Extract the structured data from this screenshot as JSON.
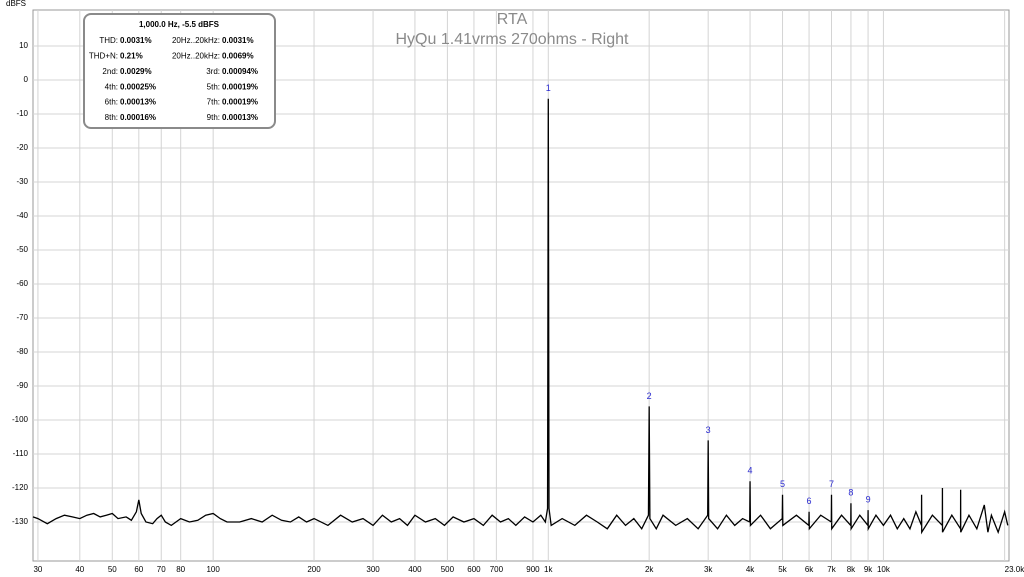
{
  "chart_data": {
    "type": "line",
    "title": "RTA",
    "subtitle": "HyQu 1.41vrms 270ohms - Right",
    "y_label": "dBFS",
    "log_x": true,
    "grid": true,
    "xlim": [
      29,
      23700
    ],
    "ylim": [
      -140,
      20
    ],
    "xticks": [
      30,
      40,
      50,
      60,
      70,
      80,
      100,
      200,
      300,
      400,
      500,
      600,
      700,
      900,
      {
        "value": 1000,
        "label": "1k"
      },
      {
        "value": 2000,
        "label": "2k"
      },
      {
        "value": 3000,
        "label": "3k"
      },
      {
        "value": 4000,
        "label": "4k"
      },
      {
        "value": 5000,
        "label": "5k"
      },
      {
        "value": 6000,
        "label": "6k"
      },
      {
        "value": 7000,
        "label": "7k"
      },
      {
        "value": 8000,
        "label": "8k"
      },
      {
        "value": 9000,
        "label": "9k"
      },
      {
        "value": 10000,
        "label": "10k"
      },
      {
        "value": 23000,
        "label": "23.0k Hz"
      }
    ],
    "yticks": [
      10,
      0,
      -10,
      -20,
      -30,
      -40,
      -50,
      -60,
      -70,
      -80,
      -90,
      -100,
      -110,
      -120,
      -130
    ],
    "x": [
      29,
      30,
      32,
      34,
      36,
      38,
      40,
      42,
      44,
      46,
      48,
      50,
      52,
      55,
      57,
      59,
      60,
      61,
      63,
      66,
      68,
      70,
      72,
      75,
      80,
      85,
      90,
      95,
      100,
      105,
      110,
      120,
      130,
      140,
      150,
      160,
      170,
      180,
      190,
      200,
      220,
      240,
      260,
      280,
      300,
      320,
      340,
      360,
      380,
      400,
      430,
      460,
      490,
      520,
      560,
      600,
      640,
      680,
      720,
      760,
      800,
      850,
      900,
      950,
      980,
      995,
      1000,
      1005,
      1020,
      1100,
      1200,
      1300,
      1400,
      1500,
      1600,
      1700,
      1800,
      1900,
      1990,
      2000,
      2010,
      2100,
      2200,
      2400,
      2600,
      2800,
      2990,
      3000,
      3010,
      3200,
      3400,
      3600,
      3800,
      3990,
      4000,
      4010,
      4300,
      4600,
      4990,
      5000,
      5010,
      5500,
      5990,
      6000,
      6010,
      6500,
      6990,
      7000,
      7010,
      7500,
      7990,
      8000,
      8010,
      8500,
      8990,
      9000,
      9010,
      9500,
      10000,
      10500,
      11000,
      11500,
      12000,
      12500,
      12990,
      13000,
      13010,
      14000,
      14990,
      15000,
      15010,
      16000,
      16990,
      17000,
      17010,
      18000,
      19000,
      20000,
      20500,
      21000,
      22000,
      23000,
      23500
    ],
    "series": [
      {
        "name": "Right",
        "color": "#000000",
        "values": [
          -128.5,
          -129,
          -130.5,
          -129,
          -128,
          -128.5,
          -129,
          -128,
          -127.5,
          -128.5,
          -128,
          -127.5,
          -129,
          -128.5,
          -129.5,
          -127,
          -123.5,
          -127.5,
          -130,
          -130.5,
          -129,
          -128,
          -130,
          -131,
          -129,
          -130,
          -129.5,
          -128,
          -127.5,
          -129,
          -130,
          -130,
          -129,
          -130,
          -128,
          -129.5,
          -130,
          -128.5,
          -130,
          -129,
          -131,
          -128,
          -130,
          -129,
          -131,
          -128,
          -130,
          -129,
          -131,
          -128,
          -130,
          -129,
          -131,
          -128.5,
          -130,
          -129,
          -131,
          -128,
          -130,
          -129,
          -131,
          -128.5,
          -130,
          -128,
          -130,
          -126,
          -5.5,
          -126,
          -131,
          -129,
          -131,
          -128,
          -130,
          -132,
          -128,
          -131,
          -129,
          -132,
          -128,
          -96,
          -129,
          -132,
          -128,
          -131,
          -129,
          -132,
          -128,
          -106,
          -129,
          -132,
          -128,
          -131,
          -129,
          -130,
          -118,
          -131,
          -128,
          -132,
          -129,
          -122,
          -131,
          -128,
          -131,
          -127,
          -132,
          -128,
          -130,
          -122,
          -132,
          -128,
          -131,
          -124.5,
          -132,
          -128,
          -131,
          -126.5,
          -132,
          -128,
          -131,
          -128,
          -132,
          -129,
          -132,
          -127,
          -131,
          -122,
          -133,
          -128,
          -131,
          -120,
          -133,
          -128,
          -132,
          -120.5,
          -133,
          -128,
          -132,
          -125,
          -133,
          -128,
          -133,
          -127,
          -131
        ]
      }
    ],
    "harmonics": {
      "labels": [
        "1",
        "2",
        "3",
        "4",
        "5",
        "6",
        "7",
        "8",
        "9"
      ],
      "x": [
        1000,
        2000,
        3000,
        4000,
        5000,
        6000,
        7000,
        8000,
        9000
      ],
      "values": [
        -5.5,
        -96,
        -106,
        -118,
        -122,
        -127,
        -122,
        -124.5,
        -126.5
      ]
    },
    "info_box": {
      "header": "1,000.0 Hz, -5.5 dBFS",
      "rows": [
        [
          "THD:",
          "0.0031%",
          "20Hz..20kHz:",
          "0.0031%"
        ],
        [
          "THD+N:",
          "0.21%",
          "20Hz..20kHz:",
          "0.0069%"
        ],
        [
          "2nd:",
          "0.0029%",
          "3rd:",
          "0.00094%"
        ],
        [
          "4th:",
          "0.00025%",
          "5th:",
          "0.00019%"
        ],
        [
          "6th:",
          "0.00013%",
          "7th:",
          "0.00019%"
        ],
        [
          "8th:",
          "0.00016%",
          "9th:",
          "0.00013%"
        ]
      ]
    }
  }
}
